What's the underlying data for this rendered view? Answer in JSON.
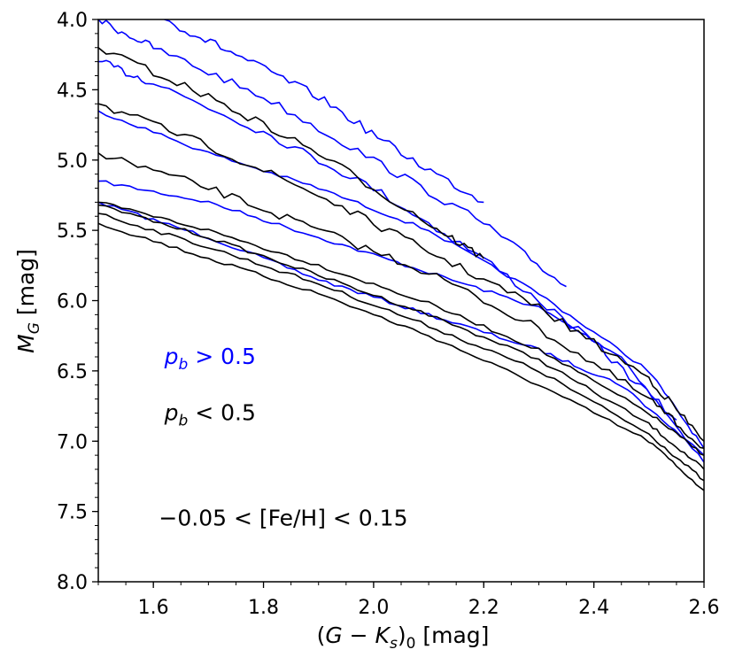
{
  "chart_data": {
    "type": "contour",
    "title": "",
    "xlabel": {
      "open": "(",
      "main": "G − K",
      "sub1": "s",
      "close": ")",
      "sub2": "0",
      "unit": " [mag]"
    },
    "ylabel": {
      "main": "M",
      "sub": "G",
      "unit": " [mag]"
    },
    "xlim": [
      1.5,
      2.6
    ],
    "ylim": [
      4.0,
      8.0
    ],
    "y_inverted": true,
    "grid": false,
    "x_ticks": [
      1.6,
      1.8,
      2.0,
      2.2,
      2.4,
      2.6
    ],
    "x_tick_labels": [
      "1.6",
      "1.8",
      "2.0",
      "2.2",
      "2.4",
      "2.6"
    ],
    "y_ticks": [
      4.0,
      4.5,
      5.0,
      5.5,
      6.0,
      6.5,
      7.0,
      7.5,
      8.0
    ],
    "y_tick_labels": [
      "4.0",
      "4.5",
      "5.0",
      "5.5",
      "6.0",
      "6.5",
      "7.0",
      "7.5",
      "8.0"
    ],
    "series": [
      {
        "name": "p_b > 0.5",
        "color": "#0000ff",
        "contours": [
          [
            [
              1.5,
              5.15
            ],
            [
              1.7,
              5.3
            ],
            [
              1.9,
              5.55
            ],
            [
              2.1,
              5.8
            ],
            [
              2.3,
              6.05
            ],
            [
              2.45,
              6.4
            ],
            [
              2.6,
              7.15
            ]
          ],
          [
            [
              1.5,
              5.3
            ],
            [
              1.7,
              5.55
            ],
            [
              1.9,
              5.85
            ],
            [
              2.1,
              6.1
            ],
            [
              2.3,
              6.35
            ],
            [
              2.45,
              6.6
            ],
            [
              2.6,
              7.1
            ]
          ],
          [
            [
              1.5,
              4.65
            ],
            [
              1.7,
              4.95
            ],
            [
              1.9,
              5.2
            ],
            [
              2.1,
              5.5
            ],
            [
              2.3,
              5.95
            ],
            [
              2.5,
              6.5
            ],
            [
              2.6,
              7.05
            ]
          ],
          [
            [
              1.5,
              4.3
            ],
            [
              1.6,
              4.45
            ],
            [
              1.8,
              4.8
            ],
            [
              2.0,
              5.2
            ],
            [
              2.2,
              5.7
            ],
            [
              2.4,
              6.3
            ],
            [
              2.55,
              6.85
            ]
          ],
          [
            [
              1.5,
              4.0
            ],
            [
              1.6,
              4.2
            ],
            [
              1.8,
              4.55
            ],
            [
              2.0,
              5.0
            ],
            [
              2.2,
              5.45
            ],
            [
              2.35,
              5.9
            ]
          ],
          [
            [
              1.62,
              4.0
            ],
            [
              1.75,
              4.25
            ],
            [
              1.9,
              4.55
            ],
            [
              2.05,
              4.95
            ],
            [
              2.2,
              5.3
            ]
          ]
        ]
      },
      {
        "name": "p_b < 0.5",
        "color": "#000000",
        "contours": [
          [
            [
              1.5,
              5.45
            ],
            [
              1.7,
              5.7
            ],
            [
              1.9,
              5.95
            ],
            [
              2.1,
              6.25
            ],
            [
              2.3,
              6.6
            ],
            [
              2.5,
              7.0
            ],
            [
              2.6,
              7.35
            ]
          ],
          [
            [
              1.5,
              5.38
            ],
            [
              1.7,
              5.62
            ],
            [
              1.9,
              5.88
            ],
            [
              2.1,
              6.18
            ],
            [
              2.3,
              6.5
            ],
            [
              2.5,
              6.95
            ],
            [
              2.6,
              7.28
            ]
          ],
          [
            [
              1.5,
              5.32
            ],
            [
              1.7,
              5.55
            ],
            [
              1.9,
              5.82
            ],
            [
              2.1,
              6.1
            ],
            [
              2.3,
              6.42
            ],
            [
              2.5,
              6.88
            ],
            [
              2.6,
              7.2
            ]
          ],
          [
            [
              1.5,
              5.3
            ],
            [
              1.7,
              5.5
            ],
            [
              1.9,
              5.75
            ],
            [
              2.1,
              6.02
            ],
            [
              2.3,
              6.35
            ],
            [
              2.5,
              6.8
            ],
            [
              2.6,
              7.1
            ]
          ],
          [
            [
              1.5,
              4.95
            ],
            [
              1.7,
              5.2
            ],
            [
              1.9,
              5.5
            ],
            [
              2.1,
              5.8
            ],
            [
              2.3,
              6.2
            ],
            [
              2.5,
              6.7
            ],
            [
              2.6,
              7.05
            ]
          ],
          [
            [
              1.5,
              4.6
            ],
            [
              1.7,
              4.9
            ],
            [
              1.9,
              5.25
            ],
            [
              2.1,
              5.65
            ],
            [
              2.3,
              6.05
            ],
            [
              2.5,
              6.55
            ],
            [
              2.6,
              7.0
            ]
          ],
          [
            [
              1.5,
              4.2
            ],
            [
              1.7,
              4.55
            ],
            [
              1.9,
              4.95
            ],
            [
              2.1,
              5.45
            ],
            [
              2.2,
              5.7
            ]
          ]
        ]
      }
    ],
    "annotations": [
      {
        "text": "p_b > 0.5",
        "var": "p",
        "sub": "b",
        "rel": " > 0.5",
        "x": 1.62,
        "y": 6.45,
        "color": "#0000ff"
      },
      {
        "text": "p_b < 0.5",
        "var": "p",
        "sub": "b",
        "rel": " < 0.5",
        "x": 1.62,
        "y": 6.85,
        "color": "#000000"
      },
      {
        "text": "−0.05 < [Fe/H] < 0.15",
        "x": 1.61,
        "y": 7.6,
        "color": "#000000"
      }
    ]
  }
}
